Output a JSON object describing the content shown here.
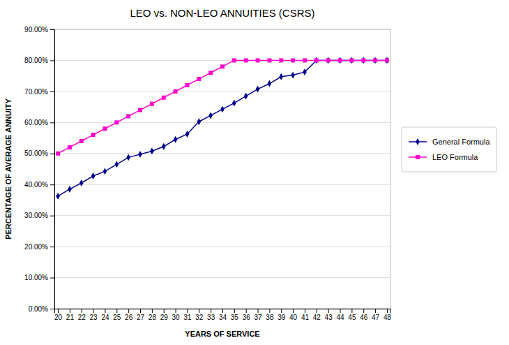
{
  "chart_data": {
    "type": "line",
    "title": "LEO vs. NON-LEO ANNUITIES (CSRS)",
    "x_label": "YEARS OF SERVICE",
    "y_label": "PERCENTAGE OF AVERAGE ANNUITY",
    "x": [
      20,
      21,
      22,
      23,
      24,
      25,
      26,
      27,
      28,
      29,
      30,
      31,
      32,
      33,
      34,
      35,
      36,
      37,
      38,
      39,
      40,
      41,
      42,
      43,
      44,
      45,
      46,
      47,
      48
    ],
    "series": [
      {
        "name": "General Formula",
        "color": "#00008B",
        "marker": "diamond",
        "line_style": "solid",
        "values": [
          0.3625,
          0.385,
          0.405,
          0.4275,
          0.4425,
          0.465,
          0.4875,
          0.4975,
          0.5075,
          0.5225,
          0.545,
          0.5625,
          0.6025,
          0.6225,
          0.6425,
          0.6625,
          0.685,
          0.7075,
          0.725,
          0.7475,
          0.7525,
          0.7625,
          0.8,
          0.8,
          0.8,
          0.8,
          0.8,
          0.8,
          0.8
        ]
      },
      {
        "name": "LEO Formula",
        "color": "#FF00CC",
        "marker": "square",
        "line_style": "solid",
        "values": [
          0.5,
          0.52,
          0.54,
          0.56,
          0.58,
          0.6,
          0.62,
          0.64,
          0.66,
          0.68,
          0.7,
          0.72,
          0.74,
          0.76,
          0.78,
          0.8,
          0.8,
          0.8,
          0.8,
          0.8,
          0.8,
          0.8,
          0.8,
          0.8,
          0.8,
          0.8,
          0.8,
          0.8,
          0.8
        ]
      }
    ],
    "xlim": [
      19.7,
      48.3
    ],
    "xticks": [
      20,
      21,
      22,
      23,
      24,
      25,
      26,
      27,
      28,
      29,
      30,
      31,
      32,
      33,
      34,
      35,
      36,
      37,
      38,
      39,
      40,
      41,
      42,
      43,
      44,
      45,
      46,
      47,
      48
    ],
    "ylim": [
      0.0,
      0.9
    ],
    "yticks": [
      {
        "value": 0.0,
        "label": "0.00%"
      },
      {
        "value": 0.1,
        "label": "10.00%"
      },
      {
        "value": 0.2,
        "label": "20.00%"
      },
      {
        "value": 0.3,
        "label": "30.00%"
      },
      {
        "value": 0.4,
        "label": "40.00%"
      },
      {
        "value": 0.5,
        "label": "50.00%"
      },
      {
        "value": 0.6,
        "label": "60.00%"
      },
      {
        "value": 0.7,
        "label": "70.00%"
      },
      {
        "value": 0.8,
        "label": "80.00%"
      },
      {
        "value": 0.9,
        "label": "90.00%"
      }
    ],
    "grid": true,
    "legend": "right"
  }
}
